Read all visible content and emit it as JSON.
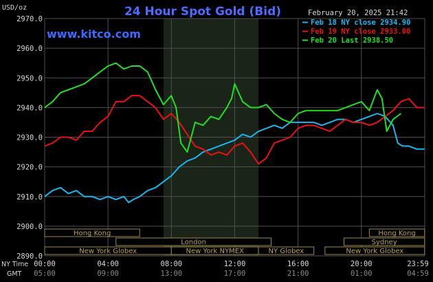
{
  "header": {
    "unit_label": "USD/oz",
    "title": "24 Hour Spot Gold (Bid)",
    "datetime": "February 20, 2025 21:42",
    "site": "www.kitco.com"
  },
  "colors": {
    "background": "#000000",
    "plot_grid": "#505050",
    "night_band": "#1a2418",
    "title": "#4a6cff",
    "site": "#3a6bff",
    "text": "#d8d8d8",
    "cyan": "#19b8f2",
    "red": "#ee1111",
    "green": "#22e022",
    "session_text": "#b8a25a",
    "session_border": "#9a8a4a"
  },
  "legend": [
    {
      "label": "Feb 18 NY close 2934.90",
      "color": "#19b8f2"
    },
    {
      "label": "Feb 19 NY close 2933.00",
      "color": "#ee1111"
    },
    {
      "label": "Feb 20 Last 2938.50",
      "color": "#22e022"
    }
  ],
  "time_rows": {
    "ny_label": "NY Time",
    "gmt_label": "GMT",
    "ny_ticks": [
      "00:00",
      "04:00",
      "08:00",
      "12:00",
      "16:00",
      "20:00",
      "23:59"
    ],
    "gmt_ticks": [
      "05:00",
      "09:00",
      "13:00",
      "17:00",
      "21:00",
      "01:00",
      "04:59"
    ]
  },
  "sessions": [
    {
      "label": "Hong Kong",
      "start": 0,
      "end": 6
    },
    {
      "label": "Hong Kong",
      "start": 20.5,
      "end": 23.99
    },
    {
      "label": "London",
      "start": 4.5,
      "end": 14.3
    },
    {
      "label": "Sydney",
      "start": 18.9,
      "end": 23.99
    },
    {
      "label": "New York Globex",
      "start": 0,
      "end": 8
    },
    {
      "label": "New York NYMEX",
      "start": 8,
      "end": 13.5
    },
    {
      "label": "NY Globex",
      "start": 13.5,
      "end": 17
    },
    {
      "label": "New York Globex",
      "start": 17.7,
      "end": 23.99
    }
  ],
  "chart_data": {
    "type": "line",
    "title": "24 Hour Spot Gold (Bid)",
    "ylabel": "USD/oz",
    "ylim": [
      2890,
      2970
    ],
    "xlim": [
      0,
      24
    ],
    "y_ticks": [
      "2970.0",
      "2960.0",
      "2950.0",
      "2940.0",
      "2930.0",
      "2920.0",
      "2910.0",
      "2900.0",
      "2890.0"
    ],
    "grid": true,
    "night_band": [
      7.5,
      13.5
    ],
    "legend_position": "top-right",
    "series": [
      {
        "name": "Feb 18 NY close 2934.90",
        "color": "#19b8f2",
        "points": [
          [
            0,
            2910
          ],
          [
            0.5,
            2912
          ],
          [
            1,
            2913
          ],
          [
            1.5,
            2911
          ],
          [
            2,
            2912
          ],
          [
            2.5,
            2910
          ],
          [
            3,
            2910
          ],
          [
            3.5,
            2909
          ],
          [
            4,
            2910
          ],
          [
            4.5,
            2909
          ],
          [
            5,
            2910
          ],
          [
            5.3,
            2908
          ],
          [
            5.6,
            2909
          ],
          [
            6,
            2910
          ],
          [
            6.5,
            2912
          ],
          [
            7,
            2913
          ],
          [
            7.5,
            2915
          ],
          [
            8,
            2917
          ],
          [
            8.5,
            2920
          ],
          [
            9,
            2922
          ],
          [
            9.5,
            2923
          ],
          [
            10,
            2925
          ],
          [
            10.5,
            2926
          ],
          [
            11,
            2927
          ],
          [
            11.5,
            2928
          ],
          [
            12,
            2929
          ],
          [
            12.5,
            2931
          ],
          [
            13,
            2930
          ],
          [
            13.5,
            2932
          ],
          [
            14,
            2933
          ],
          [
            14.5,
            2934
          ],
          [
            15,
            2933
          ],
          [
            15.5,
            2935
          ],
          [
            16,
            2935
          ],
          [
            16.5,
            2935
          ],
          [
            17,
            2935
          ],
          [
            17.5,
            2934
          ],
          [
            18,
            2935
          ],
          [
            18.5,
            2936
          ],
          [
            19,
            2936
          ],
          [
            19.5,
            2935
          ],
          [
            20,
            2936
          ],
          [
            20.5,
            2937
          ],
          [
            21,
            2938
          ],
          [
            21.5,
            2937
          ],
          [
            22,
            2934
          ],
          [
            22.3,
            2928
          ],
          [
            22.6,
            2927
          ],
          [
            23,
            2927
          ],
          [
            23.5,
            2926
          ],
          [
            23.99,
            2926
          ]
        ]
      },
      {
        "name": "Feb 19 NY close 2933.00",
        "color": "#ee1111",
        "points": [
          [
            0,
            2927
          ],
          [
            0.5,
            2928
          ],
          [
            1,
            2930
          ],
          [
            1.5,
            2930
          ],
          [
            2,
            2929
          ],
          [
            2.5,
            2932
          ],
          [
            3,
            2932
          ],
          [
            3.5,
            2935
          ],
          [
            4,
            2937
          ],
          [
            4.5,
            2942
          ],
          [
            5,
            2942
          ],
          [
            5.5,
            2944
          ],
          [
            6,
            2944
          ],
          [
            6.5,
            2942
          ],
          [
            7,
            2940
          ],
          [
            7.5,
            2936
          ],
          [
            8,
            2938
          ],
          [
            8.5,
            2935
          ],
          [
            9,
            2931
          ],
          [
            9.5,
            2927
          ],
          [
            10,
            2926
          ],
          [
            10.5,
            2924
          ],
          [
            11,
            2925
          ],
          [
            11.5,
            2924
          ],
          [
            12,
            2927
          ],
          [
            12.5,
            2928
          ],
          [
            13,
            2925
          ],
          [
            13.5,
            2921
          ],
          [
            14,
            2923
          ],
          [
            14.5,
            2928
          ],
          [
            15,
            2929
          ],
          [
            15.5,
            2930
          ],
          [
            16,
            2933
          ],
          [
            16.5,
            2934
          ],
          [
            17,
            2934
          ],
          [
            17.5,
            2933
          ],
          [
            18,
            2932
          ],
          [
            18.5,
            2934
          ],
          [
            19,
            2936
          ],
          [
            19.5,
            2935
          ],
          [
            20,
            2935
          ],
          [
            20.5,
            2934
          ],
          [
            21,
            2935
          ],
          [
            21.5,
            2937
          ],
          [
            22,
            2939
          ],
          [
            22.5,
            2942
          ],
          [
            23,
            2943
          ],
          [
            23.5,
            2940
          ],
          [
            23.99,
            2940
          ]
        ]
      },
      {
        "name": "Feb 20 Last 2938.50",
        "color": "#22e022",
        "points": [
          [
            0,
            2940
          ],
          [
            0.5,
            2942
          ],
          [
            1,
            2945
          ],
          [
            1.5,
            2946
          ],
          [
            2,
            2947
          ],
          [
            2.5,
            2948
          ],
          [
            3,
            2950
          ],
          [
            3.5,
            2952
          ],
          [
            4,
            2954
          ],
          [
            4.5,
            2955
          ],
          [
            5,
            2953
          ],
          [
            5.5,
            2954
          ],
          [
            6,
            2954
          ],
          [
            6.5,
            2952
          ],
          [
            7,
            2946
          ],
          [
            7.5,
            2941
          ],
          [
            8,
            2944
          ],
          [
            8.3,
            2940
          ],
          [
            8.6,
            2928
          ],
          [
            9,
            2925
          ],
          [
            9.5,
            2935
          ],
          [
            10,
            2934
          ],
          [
            10.5,
            2937
          ],
          [
            11,
            2936
          ],
          [
            11.5,
            2940
          ],
          [
            11.8,
            2943
          ],
          [
            12,
            2948
          ],
          [
            12.5,
            2942
          ],
          [
            13,
            2940
          ],
          [
            13.5,
            2940
          ],
          [
            14,
            2941
          ],
          [
            14.5,
            2938
          ],
          [
            15,
            2936
          ],
          [
            15.5,
            2935
          ],
          [
            16,
            2938
          ],
          [
            16.5,
            2939
          ],
          [
            17,
            2939
          ],
          [
            17.5,
            2939
          ],
          [
            18,
            2939
          ],
          [
            18.5,
            2939
          ],
          [
            19,
            2940
          ],
          [
            19.5,
            2941
          ],
          [
            20,
            2942
          ],
          [
            20.5,
            2939
          ],
          [
            21,
            2946
          ],
          [
            21.3,
            2943
          ],
          [
            21.6,
            2932
          ],
          [
            22,
            2936
          ],
          [
            22.5,
            2938
          ]
        ]
      }
    ]
  }
}
